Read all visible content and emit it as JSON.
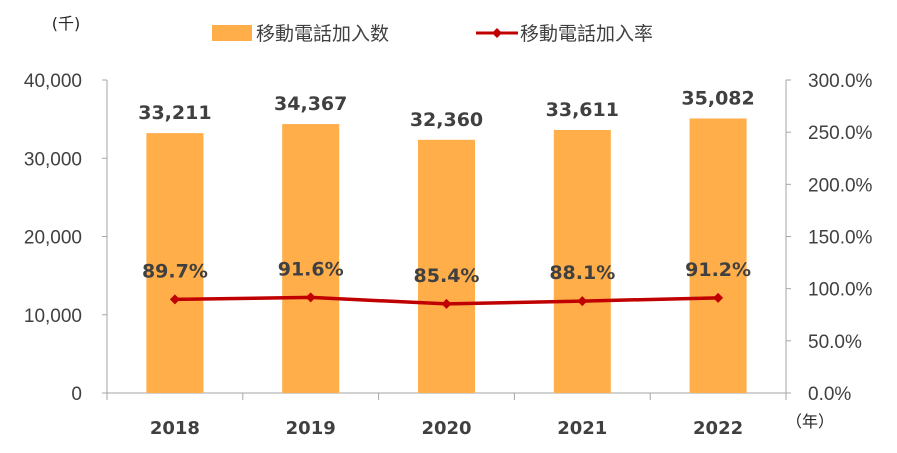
{
  "chart_data": {
    "type": "bar",
    "x": [
      "2018",
      "2019",
      "2020",
      "2021",
      "2022"
    ],
    "series": [
      {
        "name": "移動電話加入数",
        "type": "bar",
        "axis": "left",
        "values": [
          33211,
          34367,
          32360,
          33611,
          35082
        ],
        "labels": [
          "33,211",
          "34,367",
          "32,360",
          "33,611",
          "35,082"
        ],
        "color": "#FFAE4A"
      },
      {
        "name": "移動電話加入率",
        "type": "line",
        "axis": "right",
        "values": [
          89.7,
          91.6,
          85.4,
          88.1,
          91.2
        ],
        "labels": [
          "89.7%",
          "91.6%",
          "85.4%",
          "88.1%",
          "91.2%"
        ],
        "color": "#C00000"
      }
    ],
    "y_left": {
      "unit": "(千)",
      "range": [
        0,
        40000
      ],
      "ticks": [
        "0",
        "10,000",
        "20,000",
        "30,000",
        "40,000"
      ]
    },
    "y_right": {
      "range": [
        0,
        300
      ],
      "ticks": [
        "0.0%",
        "50.0%",
        "100.0%",
        "150.0%",
        "200.0%",
        "250.0%",
        "300.0%"
      ]
    },
    "x_unit": "（年）",
    "legend": "top",
    "grid": false
  }
}
